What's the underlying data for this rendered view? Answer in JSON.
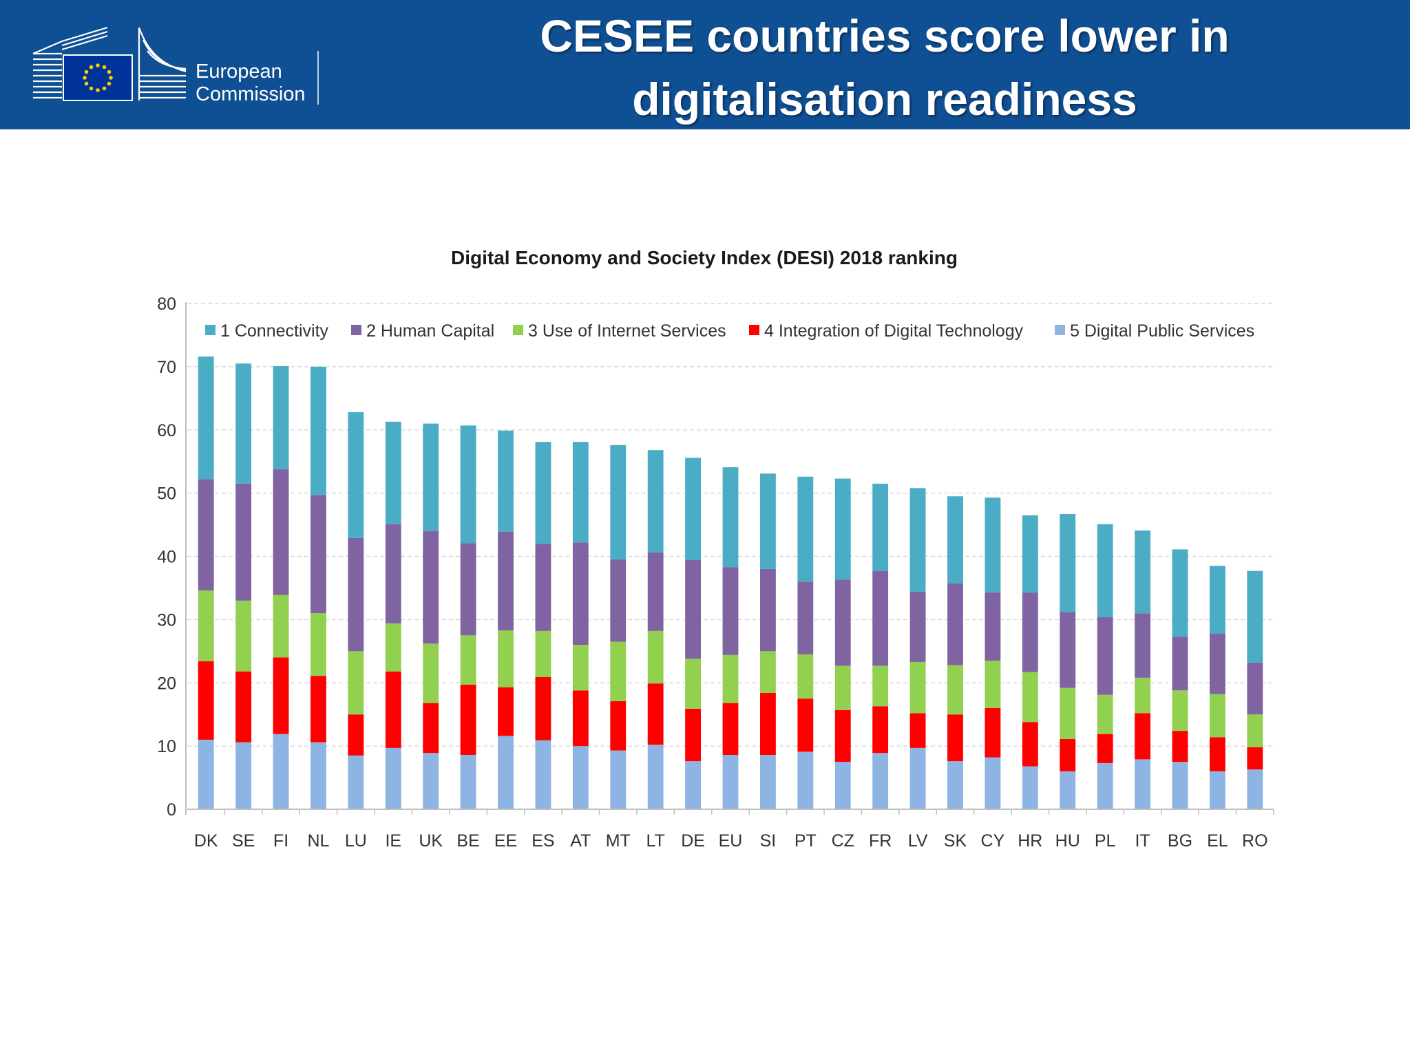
{
  "header": {
    "logo_line1": "European",
    "logo_line2": "Commission",
    "title_line1": "CESEE countries score lower in",
    "title_line2": "digitalisation readiness",
    "background_color": "#0f4f93"
  },
  "chart_data": {
    "type": "bar",
    "stacked": true,
    "title": "Digital Economy and Society Index (DESI) 2018 ranking",
    "xlabel": "",
    "ylabel": "",
    "ylim": [
      0,
      80
    ],
    "yticks": [
      0,
      10,
      20,
      30,
      40,
      50,
      60,
      70,
      80
    ],
    "grid": true,
    "legend_position": "top",
    "categories": [
      "DK",
      "SE",
      "FI",
      "NL",
      "LU",
      "IE",
      "UK",
      "BE",
      "EE",
      "ES",
      "AT",
      "MT",
      "LT",
      "DE",
      "EU",
      "SI",
      "PT",
      "CZ",
      "FR",
      "LV",
      "SK",
      "CY",
      "HR",
      "HU",
      "PL",
      "IT",
      "BG",
      "EL",
      "RO"
    ],
    "series": [
      {
        "name": "5 Digital Public Services",
        "color": "#8eb4e3",
        "values": [
          11.0,
          10.6,
          11.9,
          10.6,
          8.5,
          9.7,
          8.9,
          8.6,
          11.6,
          10.9,
          10.0,
          9.3,
          10.2,
          7.6,
          8.6,
          8.6,
          9.1,
          7.5,
          8.9,
          9.7,
          7.6,
          8.2,
          6.8,
          6.0,
          7.3,
          7.9,
          7.5,
          6.0,
          6.3
        ]
      },
      {
        "name": "4 Integration of Digital Technology",
        "color": "#ff0000",
        "values": [
          12.4,
          11.2,
          12.1,
          10.5,
          6.5,
          12.1,
          7.9,
          11.1,
          7.7,
          10.0,
          8.8,
          7.8,
          9.7,
          8.3,
          8.2,
          9.8,
          8.4,
          8.2,
          7.4,
          5.5,
          7.4,
          7.8,
          7.0,
          5.1,
          4.6,
          7.3,
          4.9,
          5.4,
          3.5
        ]
      },
      {
        "name": "3 Use of Internet Services",
        "color": "#92d050",
        "values": [
          11.2,
          11.2,
          9.9,
          9.9,
          10.0,
          7.6,
          9.4,
          7.8,
          9.0,
          7.3,
          7.2,
          9.4,
          8.3,
          7.9,
          7.6,
          6.6,
          7.0,
          7.0,
          6.4,
          8.1,
          7.8,
          7.5,
          7.9,
          8.1,
          6.2,
          5.6,
          6.4,
          6.8,
          5.2
        ]
      },
      {
        "name": "2 Human Capital",
        "color": "#8064a2",
        "values": [
          17.6,
          18.5,
          19.9,
          18.7,
          17.9,
          15.7,
          17.8,
          14.6,
          15.6,
          13.8,
          16.2,
          13.0,
          12.4,
          15.6,
          13.9,
          13.0,
          11.5,
          13.6,
          15.0,
          11.1,
          12.9,
          10.8,
          12.6,
          12.0,
          12.3,
          10.2,
          8.5,
          9.6,
          8.2
        ]
      },
      {
        "name": "1 Connectivity",
        "color": "#4bacc6",
        "values": [
          19.4,
          19.0,
          16.3,
          20.3,
          19.9,
          16.2,
          17.0,
          18.6,
          16.0,
          16.1,
          15.9,
          18.1,
          16.2,
          16.2,
          15.8,
          15.1,
          16.6,
          16.0,
          13.8,
          16.4,
          13.8,
          15.0,
          12.2,
          15.5,
          14.7,
          13.1,
          13.8,
          10.7,
          14.5
        ]
      }
    ],
    "legend_order": [
      "1 Connectivity",
      "2 Human Capital",
      "3 Use of Internet Services",
      "4 Integration of Digital Technology",
      "5 Digital Public Services"
    ]
  }
}
